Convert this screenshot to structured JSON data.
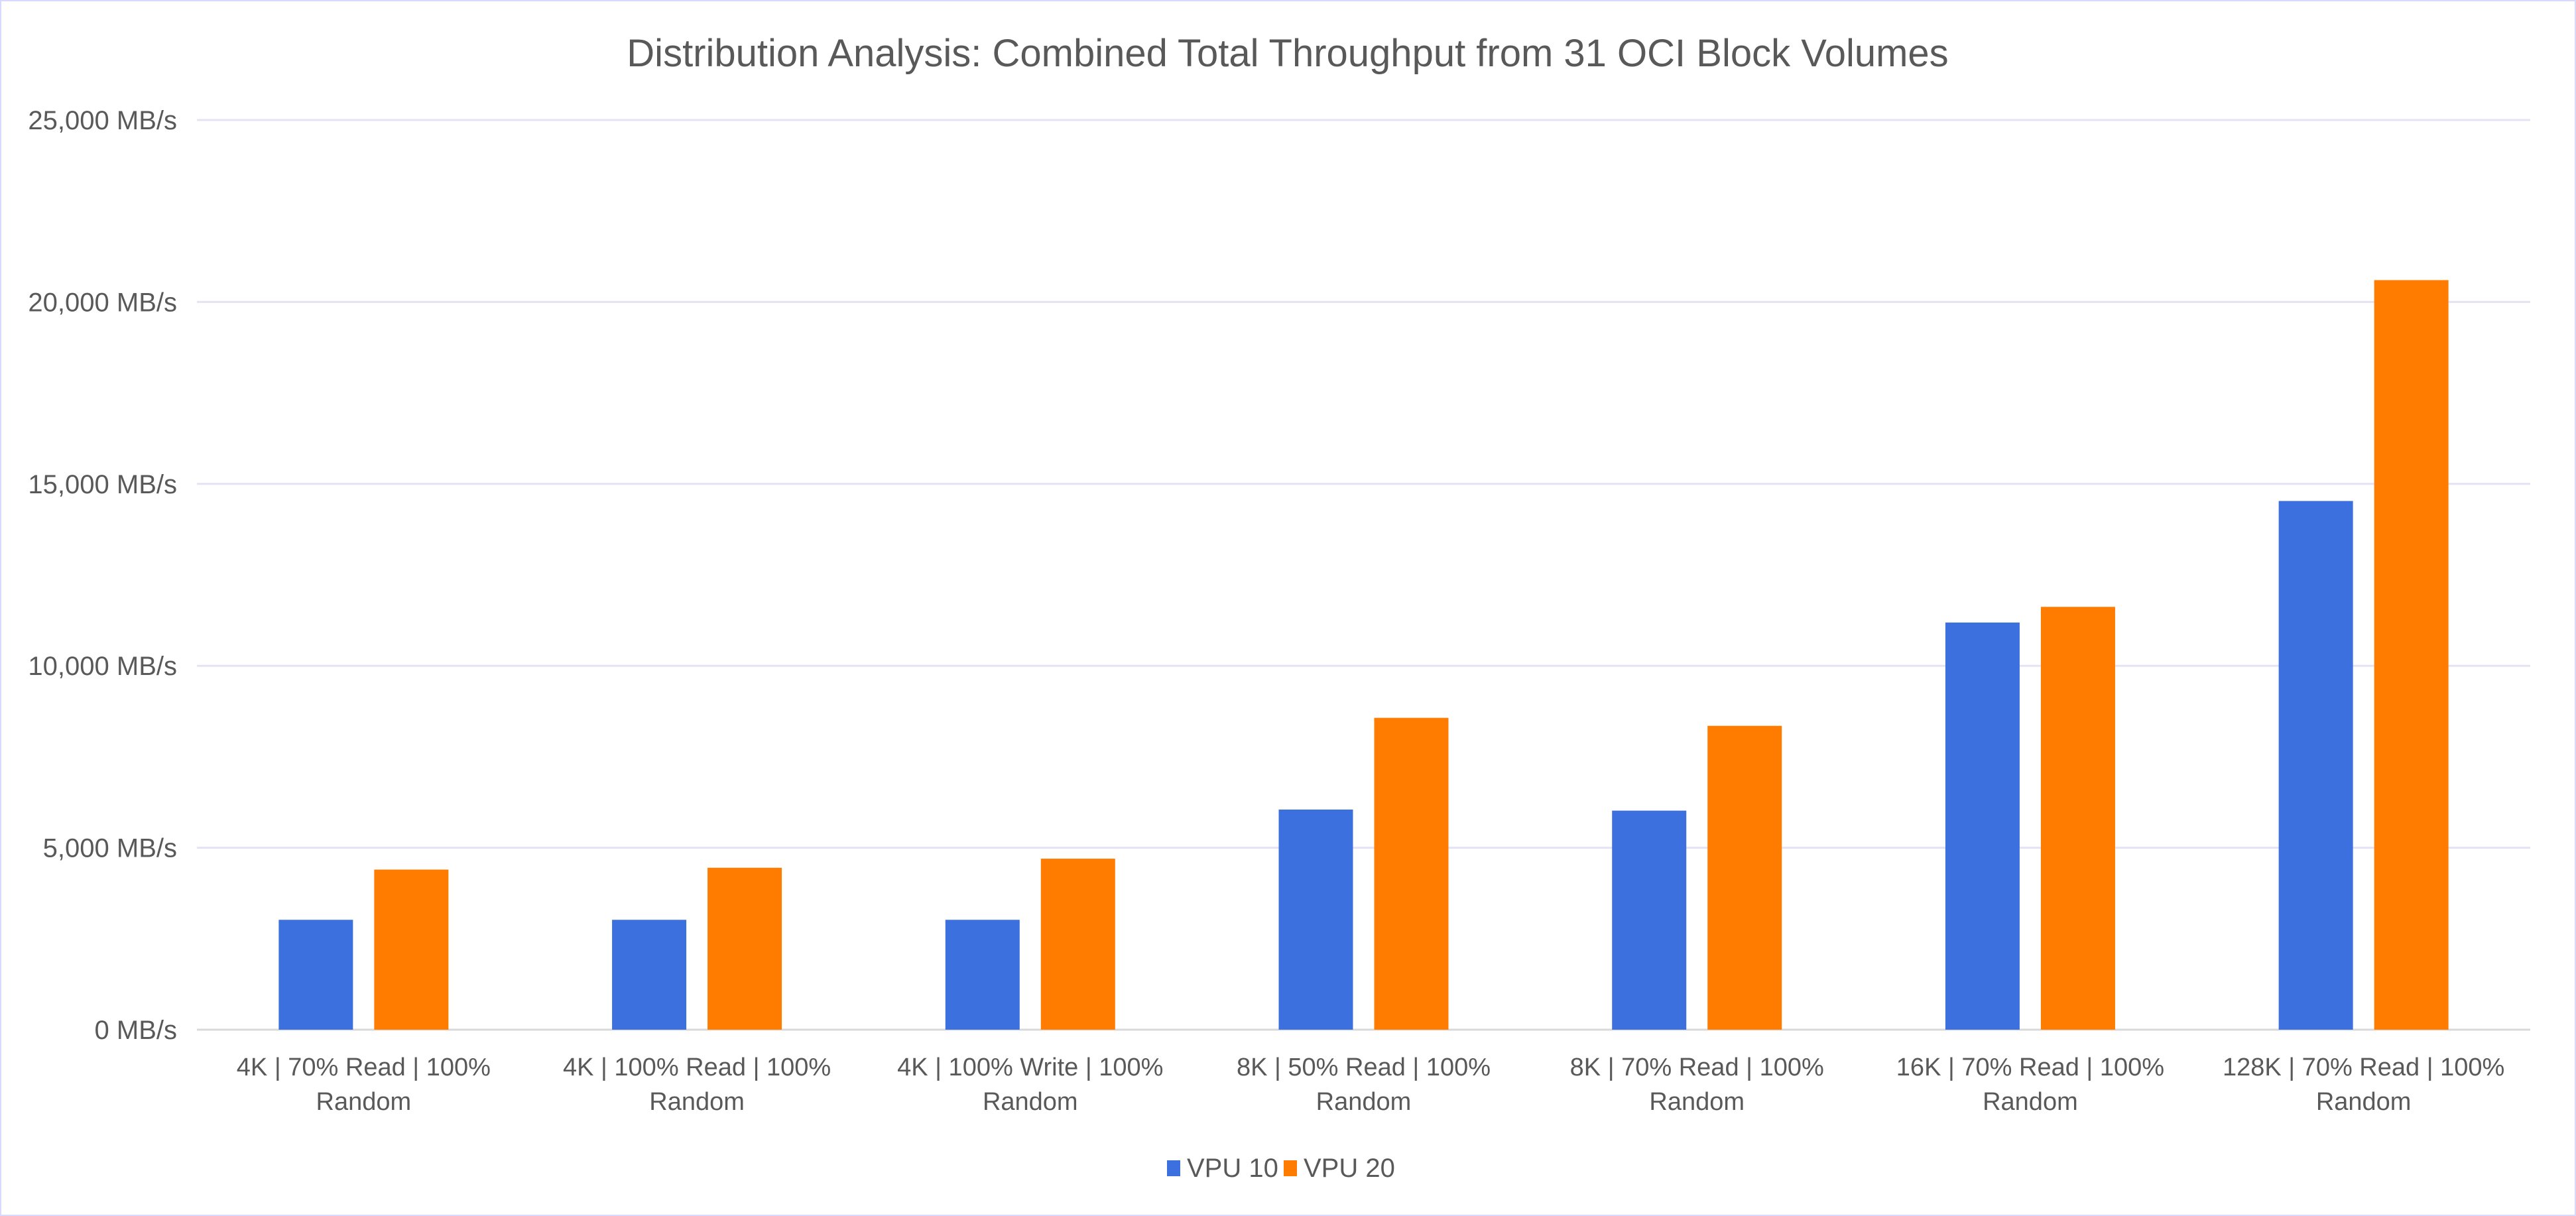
{
  "chart_data": {
    "type": "bar",
    "title": "Distribution Analysis: Combined Total Throughput from 31 OCI Block Volumes",
    "xlabel": "",
    "ylabel": "",
    "ylim": [
      0,
      25000
    ],
    "yticks": [
      0,
      5000,
      10000,
      15000,
      20000,
      25000
    ],
    "ytick_labels": [
      "0 MB/s",
      "5,000 MB/s",
      "10,000 MB/s",
      "15,000 MB/s",
      "20,000 MB/s",
      "25,000 MB/s"
    ],
    "grid": true,
    "legend_position": "bottom",
    "categories": [
      [
        "4K | 70% Read | 100%",
        "Random"
      ],
      [
        "4K | 100% Read | 100%",
        "Random"
      ],
      [
        "4K | 100% Write | 100%",
        "Random"
      ],
      [
        "8K | 50% Read | 100%",
        "Random"
      ],
      [
        "8K | 70% Read | 100%",
        "Random"
      ],
      [
        "16K | 70% Read | 100%",
        "Random"
      ],
      [
        "128K | 70% Read | 100%",
        "Random"
      ]
    ],
    "series": [
      {
        "name": "VPU 10",
        "color": "#3C70DF",
        "values": [
          3020,
          3020,
          3020,
          6050,
          6020,
          11190,
          14530
        ]
      },
      {
        "name": "VPU 20",
        "color": "#FF7C00",
        "values": [
          4400,
          4450,
          4700,
          8570,
          8350,
          11620,
          20600
        ]
      }
    ]
  }
}
